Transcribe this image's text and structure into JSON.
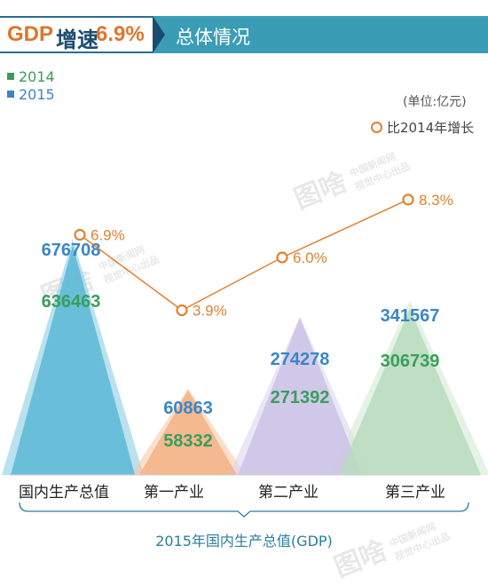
{
  "header": {
    "title_prefix": "GDP",
    "title_middle": "增速",
    "title_value": "6.9%",
    "subtitle": "总体情况"
  },
  "legend": {
    "items": [
      {
        "label": "2014",
        "color": "#3a9d5d"
      },
      {
        "label": "2015",
        "color": "#3a86c8"
      }
    ]
  },
  "unit_label": "(单位:亿元)",
  "growth_legend_label": "比2014年增长",
  "watermark": "中国新闻网 视觉中心出品",
  "watermark_logo": "图啥",
  "footer_caption": "2015年国内生产总值(GDP)",
  "colors": {
    "y2014_text": "#3a9d5d",
    "y2015_text": "#3a86c8",
    "growth_line": "#e0822f",
    "banner_accent": "#3b9db5"
  },
  "chart_data": {
    "type": "area",
    "categories": [
      "国内生产总值",
      "第一产业",
      "第二产业",
      "第三产业"
    ],
    "series": [
      {
        "name": "2014",
        "values": [
          636463,
          58332,
          271392,
          306739
        ]
      },
      {
        "name": "2015",
        "values": [
          676708,
          60863,
          274278,
          341567
        ]
      }
    ],
    "growth": {
      "name": "比2014年增长",
      "values": [
        6.9,
        3.9,
        6.0,
        8.3
      ],
      "labels": [
        "6.9%",
        "3.9%",
        "6.0%",
        "8.3%"
      ]
    },
    "title": "2015年国内生产总值(GDP)",
    "unit": "(单位:亿元)",
    "grid": false
  }
}
